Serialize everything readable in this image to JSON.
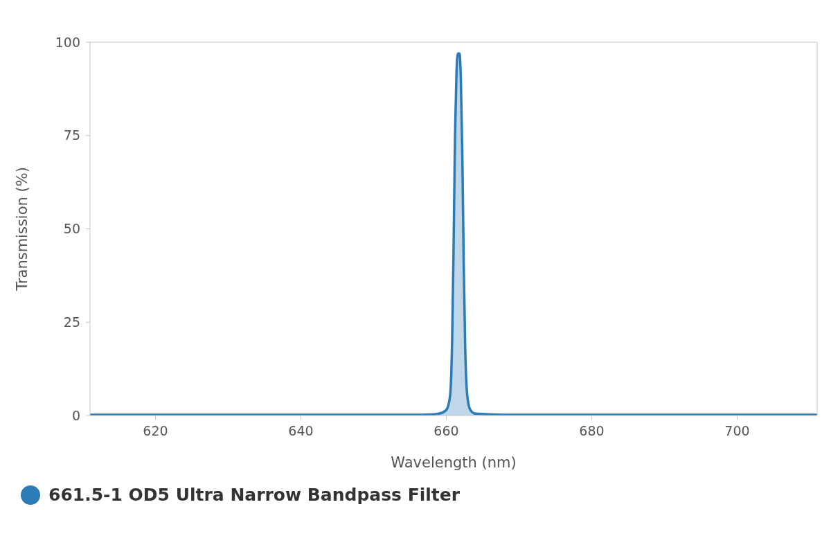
{
  "chart_data": {
    "type": "area",
    "xlabel": "Wavelength (nm)",
    "ylabel": "Transmission (%)",
    "xlim": [
      611,
      711
    ],
    "xticks": [
      620,
      640,
      660,
      680,
      700
    ],
    "ylim": [
      0,
      100
    ],
    "yticks": [
      0,
      25,
      50,
      75,
      100
    ],
    "grid": false,
    "legend": "bottom left",
    "series": [
      {
        "name": "661.5-1 OD5 Ultra Narrow Bandpass Filter",
        "color": "#2b7bb6",
        "x": [
          611,
          630,
          650,
          655,
          658,
          659,
          660,
          660.5,
          660.8,
          661,
          661.2,
          661.4,
          661.6,
          661.8,
          662,
          662.2,
          662.4,
          662.6,
          662.9,
          663.3,
          664,
          666,
          670,
          690,
          711
        ],
        "values": [
          0.2,
          0.2,
          0.2,
          0.2,
          0.3,
          0.5,
          1.5,
          5,
          20,
          45,
          75,
          92,
          97,
          97,
          90,
          70,
          40,
          18,
          5,
          1.5,
          0.5,
          0.3,
          0.2,
          0.2,
          0.2
        ]
      }
    ]
  }
}
